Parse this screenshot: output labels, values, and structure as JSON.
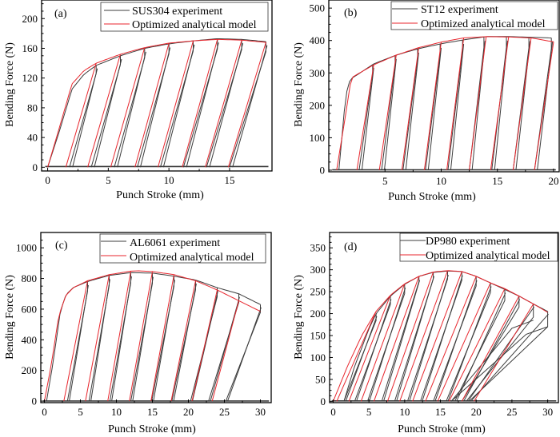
{
  "figure": {
    "colors": {
      "experiment": "#3c3c3c",
      "model": "#e8262d",
      "frame": "#000000"
    }
  },
  "chart_data": [
    {
      "id": "a",
      "type": "line",
      "panel_label": "(a)",
      "title": "",
      "xlabel": "Punch Stroke (mm)",
      "ylabel": "Bending Force (N)",
      "xlim": [
        -0.5,
        18.5
      ],
      "ylim": [
        -5,
        225
      ],
      "xticks": [
        0,
        5,
        10,
        15
      ],
      "yticks": [
        0,
        40,
        80,
        120,
        160,
        200
      ],
      "legend": {
        "placement": "top-right",
        "entries": [
          "SUS304 experiment",
          "Optimized analytical model"
        ]
      },
      "envelope_model": {
        "x": [
          0,
          1,
          2,
          3,
          4,
          6,
          8,
          10,
          12,
          14,
          16,
          18
        ],
        "y": [
          0,
          55,
          112,
          130,
          140,
          152,
          161,
          167,
          170,
          172,
          171,
          168
        ]
      },
      "envelope_experiment": {
        "x": [
          0,
          1,
          2,
          3,
          4,
          6,
          8,
          10,
          12,
          14,
          16,
          18
        ],
        "y": [
          0,
          50,
          105,
          125,
          137,
          150,
          160,
          166,
          170,
          173,
          172,
          169
        ]
      },
      "cycles_model": [
        {
          "load_end": 4,
          "unload_zero": 1.5
        },
        {
          "load_end": 6,
          "unload_zero": 3.3
        },
        {
          "load_end": 8,
          "unload_zero": 5.2
        },
        {
          "load_end": 10,
          "unload_zero": 7.2
        },
        {
          "load_end": 12,
          "unload_zero": 9.1
        },
        {
          "load_end": 14,
          "unload_zero": 11.1
        },
        {
          "load_end": 16,
          "unload_zero": 13.0
        },
        {
          "load_end": 18,
          "unload_zero": 14.9
        }
      ],
      "cycles_experiment": [
        {
          "load_end": 4,
          "unload_zero": 1.8
        },
        {
          "load_end": 6,
          "unload_zero": 3.6
        },
        {
          "load_end": 8,
          "unload_zero": 5.5
        },
        {
          "load_end": 10,
          "unload_zero": 7.4
        },
        {
          "load_end": 12,
          "unload_zero": 9.3
        },
        {
          "load_end": 14,
          "unload_zero": 11.2
        },
        {
          "load_end": 16,
          "unload_zero": 13.1
        },
        {
          "load_end": 18,
          "unload_zero": 15.0
        }
      ]
    },
    {
      "id": "b",
      "type": "line",
      "panel_label": "(b)",
      "title": "",
      "xlabel": "Punch Stroke (mm)",
      "ylabel": "Bending Force (N)",
      "xlim": [
        0,
        20.5
      ],
      "ylim": [
        -5,
        525
      ],
      "xticks": [
        5,
        10,
        15,
        20
      ],
      "yticks": [
        0,
        100,
        200,
        300,
        400,
        500
      ],
      "legend": {
        "placement": "top-right",
        "entries": [
          "ST12 experiment",
          "Optimized analytical model"
        ]
      },
      "envelope_model": {
        "x": [
          0.7,
          1.4,
          2.0,
          3,
          4,
          6,
          8,
          10,
          12,
          14,
          16,
          18,
          20
        ],
        "y": [
          0,
          150,
          285,
          305,
          325,
          355,
          378,
          395,
          408,
          412,
          411,
          408,
          396
        ]
      },
      "envelope_experiment": {
        "x": [
          0.9,
          1.5,
          1.9,
          3,
          4,
          6,
          8,
          10,
          12,
          14,
          16,
          18,
          19.8
        ],
        "y": [
          0,
          230,
          280,
          305,
          328,
          355,
          375,
          390,
          402,
          412,
          412,
          410,
          408
        ]
      },
      "cycles_model": [
        {
          "load_end": 4,
          "unload_zero": 2.5
        },
        {
          "load_end": 6,
          "unload_zero": 4.5
        },
        {
          "load_end": 8,
          "unload_zero": 6.5
        },
        {
          "load_end": 10,
          "unload_zero": 8.5
        },
        {
          "load_end": 12,
          "unload_zero": 10.5
        },
        {
          "load_end": 14,
          "unload_zero": 12.5
        },
        {
          "load_end": 16,
          "unload_zero": 14.4
        },
        {
          "load_end": 18,
          "unload_zero": 16.4
        },
        {
          "load_end": 20,
          "unload_zero": 18.3
        }
      ],
      "cycles_experiment": [
        {
          "load_end": 3.9,
          "unload_zero": 2.7
        },
        {
          "load_end": 5.9,
          "unload_zero": 4.7
        },
        {
          "load_end": 7.9,
          "unload_zero": 6.6
        },
        {
          "load_end": 9.9,
          "unload_zero": 8.6
        },
        {
          "load_end": 11.9,
          "unload_zero": 10.6
        },
        {
          "load_end": 13.8,
          "unload_zero": 12.5
        },
        {
          "load_end": 15.8,
          "unload_zero": 14.5
        },
        {
          "load_end": 17.8,
          "unload_zero": 16.4
        },
        {
          "load_end": 19.8,
          "unload_zero": 18.3
        }
      ]
    },
    {
      "id": "c",
      "type": "line",
      "panel_label": "(c)",
      "title": "",
      "xlabel": "Punch Stroke (mm)",
      "ylabel": "Bending Force (N)",
      "xlim": [
        -0.5,
        31.5
      ],
      "ylim": [
        -10,
        1100
      ],
      "xticks": [
        0,
        5,
        10,
        15,
        20,
        25,
        30
      ],
      "yticks": [
        0,
        200,
        400,
        600,
        800,
        1000
      ],
      "legend": {
        "placement": "top-right",
        "entries": [
          "AL6061 experiment",
          "Optimized analytical model"
        ]
      },
      "envelope_model": {
        "x": [
          0,
          1,
          2,
          3,
          4,
          6,
          9,
          12,
          13,
          15,
          18,
          21,
          24,
          27,
          30
        ],
        "y": [
          0,
          250,
          560,
          690,
          740,
          785,
          825,
          848,
          850,
          845,
          825,
          785,
          725,
          655,
          585
        ]
      },
      "envelope_experiment": {
        "x": [
          0.3,
          1.2,
          2.2,
          3,
          4,
          6,
          9,
          12,
          15,
          18,
          21,
          24,
          27,
          30
        ],
        "y": [
          0,
          250,
          580,
          695,
          740,
          780,
          820,
          838,
          835,
          815,
          790,
          740,
          700,
          630
        ]
      },
      "cycles_model": [
        {
          "load_end": 6,
          "unload_zero": 2.7
        },
        {
          "load_end": 9,
          "unload_zero": 5.7
        },
        {
          "load_end": 12,
          "unload_zero": 8.8
        },
        {
          "load_end": 15,
          "unload_zero": 11.8
        },
        {
          "load_end": 18,
          "unload_zero": 14.8
        },
        {
          "load_end": 21,
          "unload_zero": 17.6
        },
        {
          "load_end": 24,
          "unload_zero": 20.5
        },
        {
          "load_end": 27,
          "unload_zero": 23.3
        }
      ],
      "cycles_experiment": [
        {
          "load_end": 6,
          "unload_zero": 3.2
        },
        {
          "load_end": 9,
          "unload_zero": 6.2
        },
        {
          "load_end": 12,
          "unload_zero": 9.1
        },
        {
          "load_end": 15,
          "unload_zero": 12.0
        },
        {
          "load_end": 18,
          "unload_zero": 14.9
        },
        {
          "load_end": 21,
          "unload_zero": 17.7
        },
        {
          "load_end": 24,
          "unload_zero": 20.3
        },
        {
          "load_end": 27,
          "unload_zero": 22.8
        },
        {
          "load_end": 30,
          "unload_zero": 25.2
        }
      ]
    },
    {
      "id": "d",
      "type": "line",
      "panel_label": "(d)",
      "title": "",
      "xlabel": "Punch Stroke (mm)",
      "ylabel": "Bending Force (N)",
      "xlim": [
        -0.5,
        31.5
      ],
      "ylim": [
        -3,
        385
      ],
      "xticks": [
        0,
        5,
        10,
        15,
        20,
        25,
        30
      ],
      "yticks": [
        0,
        50,
        100,
        150,
        200,
        250,
        300,
        350
      ],
      "legend": {
        "placement": "top-right",
        "entries": [
          "DP980 experiment",
          "Optimized analytical model"
        ]
      },
      "envelope_model": {
        "x": [
          0,
          2,
          4,
          6,
          8,
          10,
          12,
          14,
          16,
          18,
          20,
          22,
          24,
          26,
          28,
          30
        ],
        "y": [
          0,
          80,
          150,
          205,
          242,
          268,
          285,
          295,
          298,
          296,
          285,
          270,
          257,
          240,
          222,
          203
        ]
      },
      "envelope_experiment": {
        "x": [
          1.5,
          3,
          5,
          6,
          8,
          10,
          12,
          14,
          16,
          18,
          20,
          22,
          24,
          26,
          28,
          30
        ],
        "y": [
          0,
          80,
          165,
          200,
          240,
          267,
          285,
          294,
          297,
          296,
          285,
          270,
          255,
          240,
          222,
          205
        ]
      },
      "cycles_model": [
        {
          "load_end": 6,
          "unload_zero": 0.5
        },
        {
          "load_end": 8,
          "unload_zero": 2.2
        },
        {
          "load_end": 10,
          "unload_zero": 3.9
        },
        {
          "load_end": 12,
          "unload_zero": 5.7
        },
        {
          "load_end": 14,
          "unload_zero": 7.6
        },
        {
          "load_end": 16,
          "unload_zero": 9.3
        },
        {
          "load_end": 18,
          "unload_zero": 11.1
        },
        {
          "load_end": 20,
          "unload_zero": 12.9
        },
        {
          "load_end": 22,
          "unload_zero": 14.6
        },
        {
          "load_end": 24,
          "unload_zero": 16.2
        },
        {
          "load_end": 26,
          "unload_zero": 18.0
        },
        {
          "load_end": 28,
          "unload_zero": 19.7
        }
      ],
      "cycles_experiment": [
        {
          "load_end": 6,
          "unload_zero": 1.5,
          "reload_peak": 200,
          "drop": 0
        },
        {
          "load_end": 8,
          "unload_zero": 3.0,
          "reload_peak": 240,
          "drop": 0
        },
        {
          "load_end": 10,
          "unload_zero": 4.8,
          "reload_peak": 267,
          "drop": 0
        },
        {
          "load_end": 12,
          "unload_zero": 6.8,
          "reload_peak": 285,
          "drop": 12
        },
        {
          "load_end": 14,
          "unload_zero": 8.6,
          "reload_peak": 294,
          "drop": 15
        },
        {
          "load_end": 16,
          "unload_zero": 10.4,
          "reload_peak": 297,
          "drop": 18
        },
        {
          "load_end": 18,
          "unload_zero": 12.2,
          "reload_peak": 296,
          "drop": 20
        },
        {
          "load_end": 20,
          "unload_zero": 14.0,
          "reload_peak": 284,
          "drop": 22
        },
        {
          "load_end": 22,
          "unload_zero": 15.8,
          "reload_peak": 270,
          "drop": 22
        },
        {
          "load_end": 24,
          "unload_zero": 17.0,
          "reload_peak": 255,
          "drop": 25
        },
        {
          "load_end": 26,
          "unload_zero": 18.0,
          "reload_peak": 240,
          "drop": 25
        },
        {
          "load_end": 28,
          "unload_zero": 18.6,
          "reload_peak": 222,
          "drop": 30
        },
        {
          "load_end": 30,
          "unload_zero": 19.0,
          "reload_peak": 205,
          "drop": 35
        }
      ],
      "experiment_tail_peaks": [
        {
          "x": 28,
          "y": 185
        },
        {
          "x": 30,
          "y": 170
        }
      ]
    }
  ]
}
